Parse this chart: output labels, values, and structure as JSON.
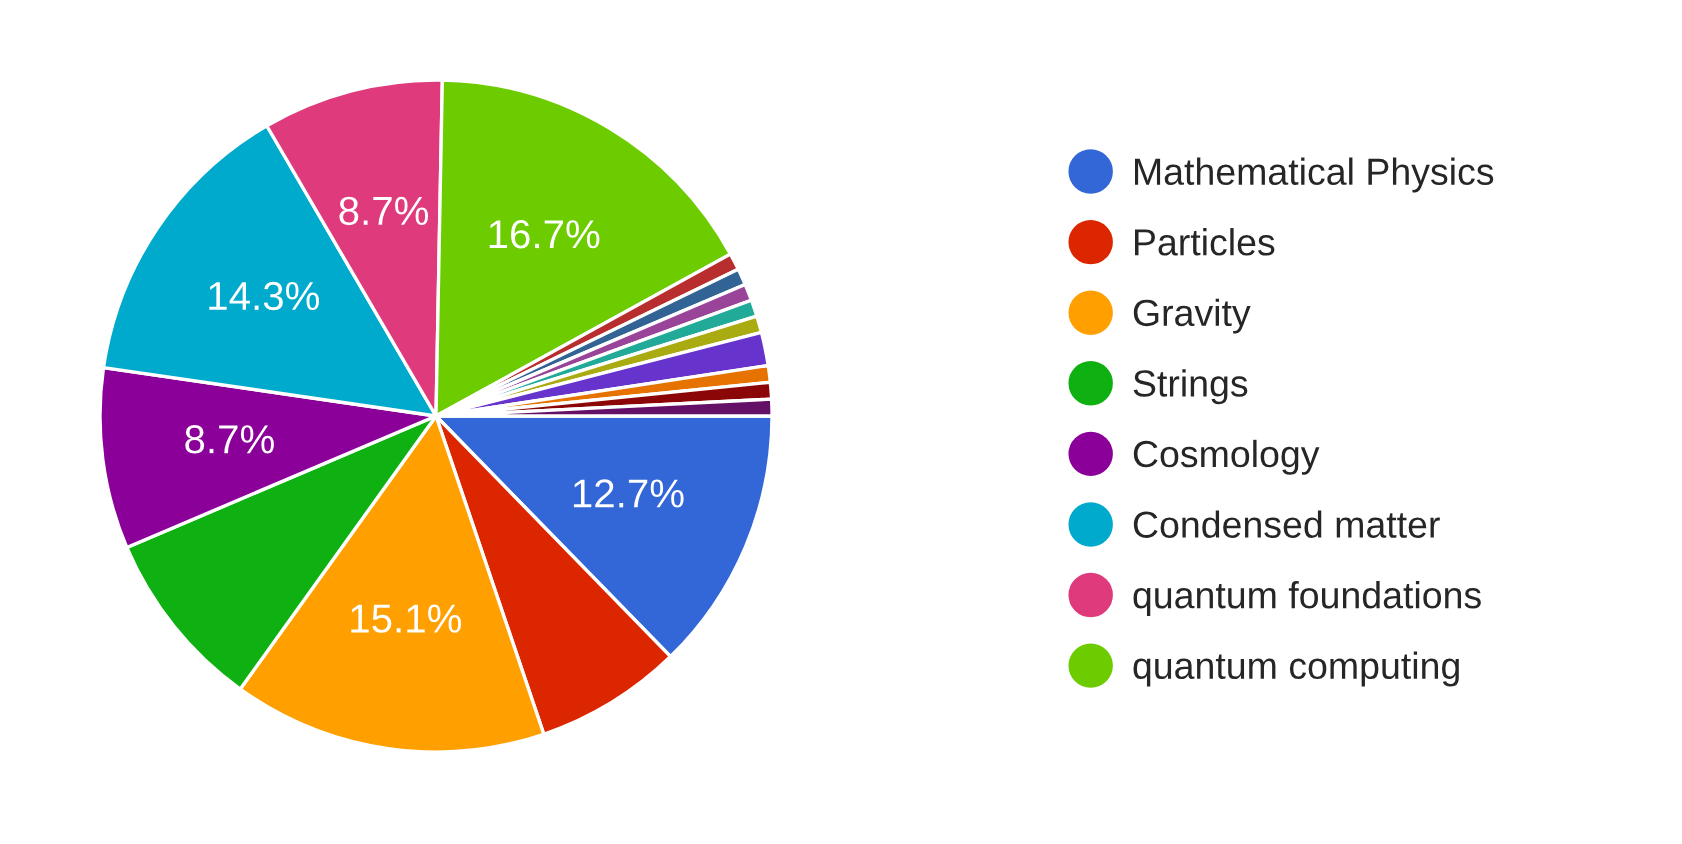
{
  "chart_data": {
    "type": "pie",
    "categories": [
      "Mathematical Physics",
      "Particles",
      "Gravity",
      "Strings",
      "Cosmology",
      "Condensed matter",
      "quantum foundations",
      "quantum computing",
      null,
      null,
      null,
      null,
      null,
      null,
      null,
      null,
      null
    ],
    "values": [
      12.7,
      7.1,
      15.1,
      8.7,
      8.7,
      14.3,
      8.7,
      16.7,
      0.8,
      0.8,
      0.8,
      0.8,
      0.8,
      1.6,
      0.8,
      0.8,
      0.8
    ],
    "colors": [
      "#3366d6",
      "#dc2600",
      "#ffa000",
      "#0fb012",
      "#8b0099",
      "#00aacc",
      "#de3a7c",
      "#6ccc00",
      "#b82e2e",
      "#316395",
      "#994499",
      "#22aa99",
      "#aaaa11",
      "#6633cc",
      "#e67300",
      "#8b0707",
      "#651067"
    ],
    "value_labels": [
      "12.7%",
      null,
      "15.1%",
      null,
      "8.7%",
      "14.3%",
      "8.7%",
      "16.7%",
      null,
      null,
      null,
      null,
      null,
      null,
      null,
      null,
      null
    ],
    "legend": "right"
  }
}
